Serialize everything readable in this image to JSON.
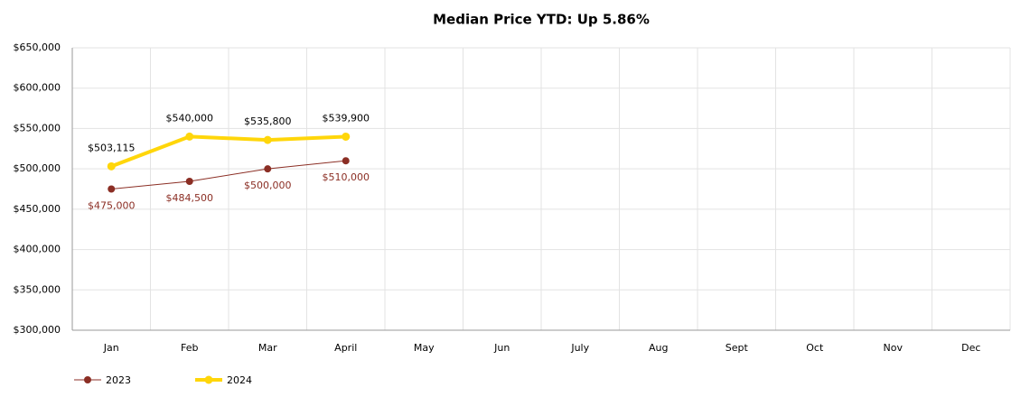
{
  "chart_data": {
    "type": "line",
    "title": "Median Price YTD: Up 5.86%",
    "categories": [
      "Jan",
      "Feb",
      "Mar",
      "April",
      "May",
      "Jun",
      "July",
      "Aug",
      "Sept",
      "Oct",
      "Nov",
      "Dec"
    ],
    "series": [
      {
        "name": "2023",
        "color": "#8b2e24",
        "values": [
          475000,
          484500,
          500000,
          510000,
          null,
          null,
          null,
          null,
          null,
          null,
          null,
          null
        ],
        "value_labels": [
          "$475,000",
          "$484,500",
          "$500,000",
          "$510,000",
          null,
          null,
          null,
          null,
          null,
          null,
          null,
          null
        ]
      },
      {
        "name": "2024",
        "color": "#ffd60a",
        "values": [
          503115,
          540000,
          535800,
          539900,
          null,
          null,
          null,
          null,
          null,
          null,
          null,
          null
        ],
        "value_labels": [
          "$503,115",
          "$540,000",
          "$535,800",
          "$539,900",
          null,
          null,
          null,
          null,
          null,
          null,
          null,
          null
        ]
      }
    ],
    "ylim": [
      300000,
      650000
    ],
    "yticks": [
      {
        "value": 300000,
        "label": "$300,000"
      },
      {
        "value": 350000,
        "label": "$350,000"
      },
      {
        "value": 400000,
        "label": "$400,000"
      },
      {
        "value": 450000,
        "label": "$450,000"
      },
      {
        "value": 500000,
        "label": "$500,000"
      },
      {
        "value": 550000,
        "label": "$550,000"
      },
      {
        "value": 600000,
        "label": "$600,000"
      },
      {
        "value": 650000,
        "label": "$650,000"
      }
    ],
    "grid": true,
    "legend": "bottom-left"
  }
}
